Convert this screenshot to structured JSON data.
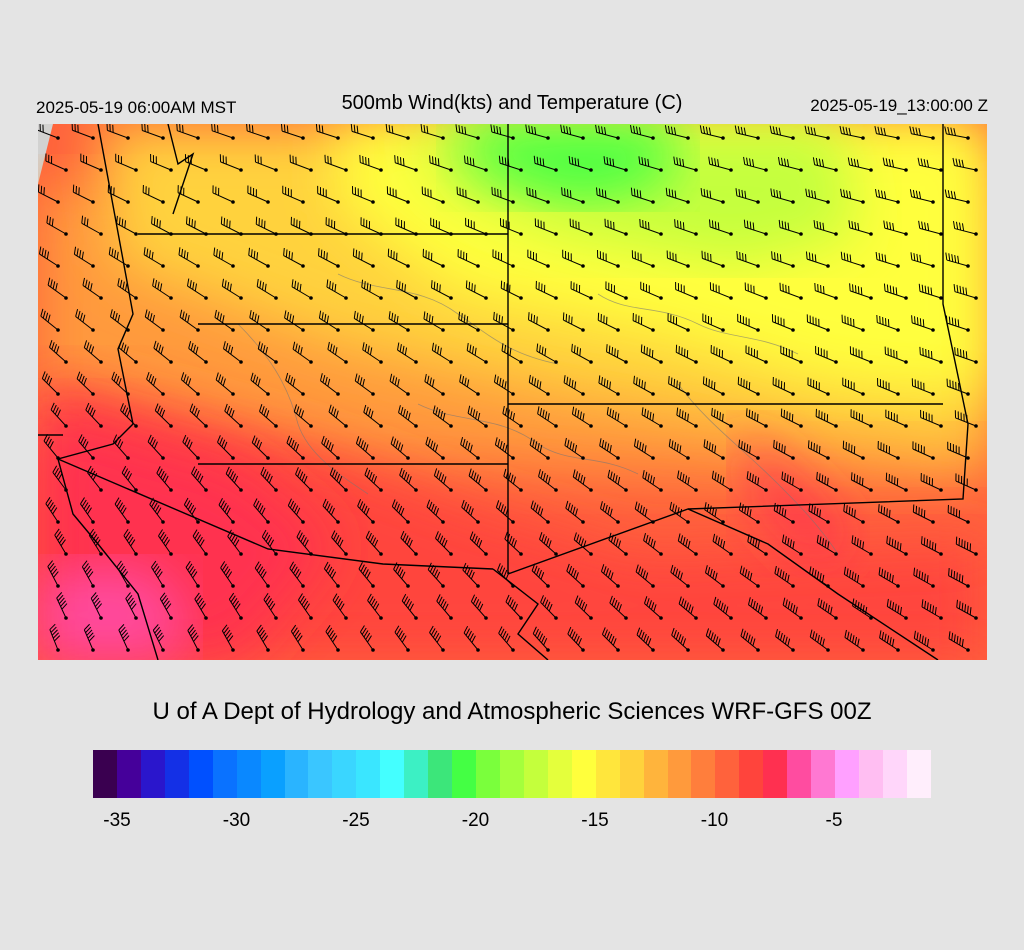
{
  "header": {
    "local_time": "2025-05-19 06:00AM MST",
    "title": "500mb Wind(kts) and Temperature (C)",
    "valid_time": "2025-05-19_13:00:00 Z"
  },
  "credit": "U of A Dept of Hydrology and Atmospheric Sciences WRF-GFS 00Z",
  "colorbar": {
    "colors": [
      "#3a0050",
      "#45009a",
      "#2a16cc",
      "#1430e6",
      "#0050ff",
      "#0a72ff",
      "#0a88ff",
      "#0aa0ff",
      "#2ab4ff",
      "#3ac6ff",
      "#3ad6ff",
      "#3ae6ff",
      "#44ffff",
      "#3cf0c4",
      "#3ce67a",
      "#44ff44",
      "#7aff3c",
      "#a4ff3c",
      "#c4ff3c",
      "#e4ff3c",
      "#ffff3c",
      "#ffe63c",
      "#ffd23c",
      "#ffb43c",
      "#ff9a3c",
      "#ff7e3c",
      "#ff623c",
      "#ff443c",
      "#ff3050",
      "#ff4ca0",
      "#ff78d2",
      "#ffa0ff",
      "#ffbef2",
      "#ffd6fa",
      "#ffeefc"
    ],
    "ticks": [
      "-35",
      "-30",
      "-25",
      "-20",
      "-15",
      "-10",
      "-5"
    ]
  },
  "map_colors": {
    "magenta": "#ff4ca0",
    "crimson": "#ff3050",
    "red": "#ff443c",
    "red_orange": "#ff623c",
    "orange": "#ff9a3c",
    "gold": "#ffd23c",
    "yellow": "#ffff3c",
    "yellow_green": "#c4ff3c",
    "green": "#44ff44",
    "background": "#d2d2d2"
  }
}
